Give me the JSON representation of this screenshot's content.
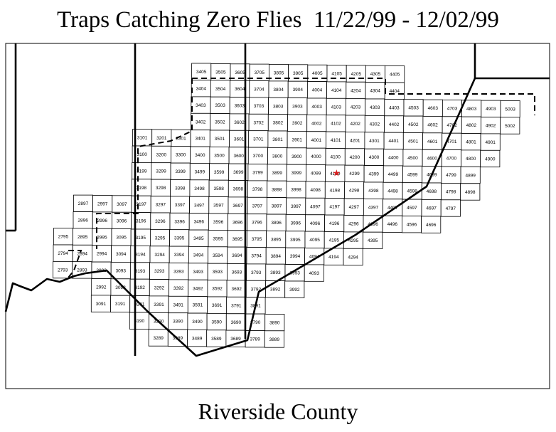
{
  "title": "Traps Catching Zero Flies  11/22/99 - 12/02/99",
  "caption": "Riverside County",
  "marker": {
    "cell": "4199",
    "color": "#d81e1e"
  },
  "rows": [
    {
      "start_col": 3,
      "labels": [
        "3405",
        "3505",
        "3605",
        "3705",
        "3805",
        "3905",
        "4005",
        "4105",
        "4205",
        "4305",
        "4405"
      ]
    },
    {
      "start_col": 3,
      "labels": [
        "3404",
        "3504",
        "3604",
        "3704",
        "3804",
        "3904",
        "4004",
        "4104",
        "4204",
        "4304",
        "4404"
      ]
    },
    {
      "start_col": 3,
      "labels": [
        "3403",
        "3503",
        "3603",
        "3703",
        "3803",
        "3903",
        "4003",
        "4103",
        "4203",
        "4303",
        "4403",
        "4503",
        "4603",
        "4703",
        "4803",
        "4903",
        "5003"
      ]
    },
    {
      "start_col": 3,
      "labels": [
        "3402",
        "3502",
        "3602",
        "3702",
        "3802",
        "3902",
        "4002",
        "4102",
        "4202",
        "4302",
        "4402",
        "4502",
        "4602",
        "4702",
        "4802",
        "4902",
        "5002"
      ]
    },
    {
      "start_col": 0,
      "labels": [
        "3101",
        "3201",
        "3301",
        "3401",
        "3501",
        "3601",
        "3701",
        "3801",
        "3901",
        "4001",
        "4101",
        "4201",
        "4301",
        "4401",
        "4501",
        "4601",
        "4701",
        "4801",
        "4901"
      ]
    },
    {
      "start_col": 0,
      "labels": [
        "3100",
        "3200",
        "3300",
        "3400",
        "3500",
        "3600",
        "3700",
        "3800",
        "3900",
        "4000",
        "4100",
        "4200",
        "4300",
        "4400",
        "4500",
        "4600",
        "4700",
        "4800",
        "4900"
      ]
    },
    {
      "start_col": 0,
      "labels": [
        "3199",
        "3299",
        "3399",
        "3499",
        "3599",
        "3699",
        "3799",
        "3899",
        "3999",
        "4099",
        "4199",
        "4299",
        "4399",
        "4499",
        "4599",
        "4699",
        "4799",
        "4899"
      ]
    },
    {
      "start_col": 0,
      "labels": [
        "3198",
        "3298",
        "3398",
        "3498",
        "3598",
        "3698",
        "3798",
        "3898",
        "3998",
        "4098",
        "4198",
        "4298",
        "4398",
        "4498",
        "4598",
        "4698",
        "4798",
        "4898"
      ]
    },
    {
      "start_col": -3,
      "labels": [
        "2897",
        "2997",
        "3097",
        "3197",
        "3297",
        "3397",
        "3497",
        "3597",
        "3697",
        "3797",
        "3897",
        "3997",
        "4097",
        "4197",
        "4297",
        "4397",
        "4497",
        "4597",
        "4697",
        "4797"
      ]
    },
    {
      "start_col": -3,
      "labels": [
        "2896",
        "2996",
        "3096",
        "3196",
        "3296",
        "3396",
        "3496",
        "3596",
        "3696",
        "3796",
        "3896",
        "3996",
        "4096",
        "4196",
        "4296",
        "4396",
        "4496",
        "4596",
        "4696"
      ]
    },
    {
      "start_col": -4,
      "labels": [
        "2795",
        "2895",
        "2995",
        "3095",
        "3195",
        "3295",
        "3395",
        "3495",
        "3595",
        "3695",
        "3795",
        "3895",
        "3995",
        "4095",
        "4195",
        "4295",
        "4395"
      ]
    },
    {
      "start_col": -4,
      "labels": [
        "2794",
        "2894",
        "2994",
        "3094",
        "3194",
        "3294",
        "3394",
        "3494",
        "3594",
        "3694",
        "3794",
        "3894",
        "3994",
        "4094",
        "4194",
        "4294"
      ]
    },
    {
      "start_col": -4,
      "labels": [
        "2793",
        "2893",
        "2993",
        "3093",
        "3193",
        "3293",
        "3393",
        "3493",
        "3593",
        "3693",
        "3793",
        "3893",
        "3993",
        "4093"
      ]
    },
    {
      "start_col": -2,
      "labels": [
        "2992",
        "3092",
        "3192",
        "3292",
        "3392",
        "3492",
        "3592",
        "3692",
        "3792",
        "3892",
        "3992"
      ]
    },
    {
      "start_col": -2,
      "labels": [
        "3091",
        "3191",
        "3291",
        "3391",
        "3491",
        "3591",
        "3691",
        "3791",
        "3891"
      ]
    },
    {
      "start_col": 0,
      "labels": [
        "3190",
        "3290",
        "3390",
        "3490",
        "3590",
        "3690",
        "3790",
        "3890"
      ]
    },
    {
      "start_col": 1,
      "labels": [
        "3289",
        "3389",
        "3489",
        "3589",
        "3689",
        "3789",
        "3889"
      ]
    }
  ]
}
